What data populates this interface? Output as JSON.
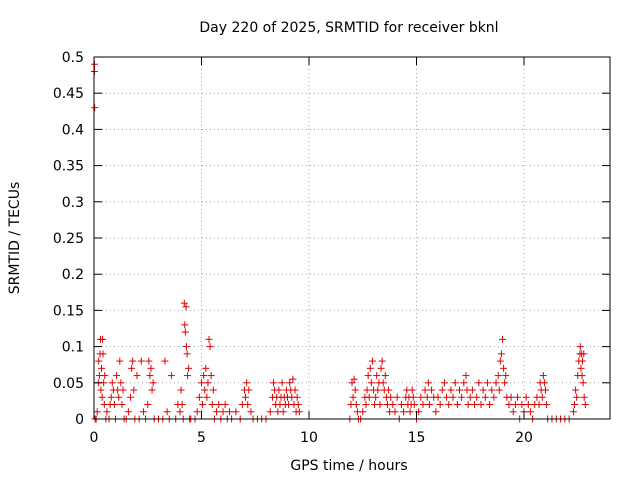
{
  "chart_data": {
    "type": "scatter",
    "title": "Day 220 of 2025, SRMTID for receiver bknl",
    "xlabel": "GPS time / hours",
    "ylabel": "SRMTID / TECUs",
    "xlim": [
      0,
      24
    ],
    "ylim": [
      0,
      0.5
    ],
    "xticks": [
      0,
      5,
      10,
      15,
      20
    ],
    "yticks": [
      0,
      0.05,
      0.1,
      0.15,
      0.2,
      0.25,
      0.3,
      0.35,
      0.4,
      0.45,
      0.5
    ],
    "xtick_labels": [
      "0",
      "5",
      "10",
      "15",
      "20"
    ],
    "ytick_labels": [
      "0",
      "0.05",
      "0.1",
      "0.15",
      "0.2",
      "0.25",
      "0.3",
      "0.35",
      "0.4",
      "0.45",
      "0.5"
    ],
    "grid": true,
    "marker": "+",
    "color": "#e00000",
    "series": [
      {
        "points": [
          [
            0.02,
            0.48
          ],
          [
            0.02,
            0.49
          ],
          [
            0.03,
            0.43
          ],
          [
            0.05,
            0.0
          ],
          [
            0.1,
            0.0
          ],
          [
            0.15,
            0.01
          ],
          [
            0.2,
            0.05
          ],
          [
            0.22,
            0.08
          ],
          [
            0.25,
            0.06
          ],
          [
            0.28,
            0.09
          ],
          [
            0.3,
            0.11
          ],
          [
            0.32,
            0.04
          ],
          [
            0.35,
            0.07
          ],
          [
            0.38,
            0.03
          ],
          [
            0.4,
            0.11
          ],
          [
            0.42,
            0.09
          ],
          [
            0.45,
            0.05
          ],
          [
            0.48,
            0.02
          ],
          [
            0.5,
            0.06
          ],
          [
            0.55,
            0.0
          ],
          [
            0.6,
            0.01
          ],
          [
            0.7,
            0.0
          ],
          [
            0.75,
            0.02
          ],
          [
            0.8,
            0.03
          ],
          [
            0.85,
            0.05
          ],
          [
            0.9,
            0.04
          ],
          [
            0.95,
            0.02
          ],
          [
            1.0,
            0.0
          ],
          [
            1.05,
            0.06
          ],
          [
            1.1,
            0.04
          ],
          [
            1.15,
            0.03
          ],
          [
            1.2,
            0.08
          ],
          [
            1.25,
            0.05
          ],
          [
            1.3,
            0.02
          ],
          [
            1.35,
            0.04
          ],
          [
            1.4,
            0.0
          ],
          [
            1.5,
            0.0
          ],
          [
            1.6,
            0.01
          ],
          [
            1.7,
            0.03
          ],
          [
            1.75,
            0.07
          ],
          [
            1.8,
            0.08
          ],
          [
            1.85,
            0.04
          ],
          [
            1.9,
            0.0
          ],
          [
            2.0,
            0.06
          ],
          [
            2.1,
            0.0
          ],
          [
            2.2,
            0.08
          ],
          [
            2.3,
            0.01
          ],
          [
            2.4,
            0.0
          ],
          [
            2.5,
            0.02
          ],
          [
            2.55,
            0.08
          ],
          [
            2.6,
            0.06
          ],
          [
            2.65,
            0.07
          ],
          [
            2.7,
            0.04
          ],
          [
            2.75,
            0.05
          ],
          [
            2.8,
            0.0
          ],
          [
            3.0,
            0.0
          ],
          [
            3.2,
            0.0
          ],
          [
            3.3,
            0.08
          ],
          [
            3.4,
            0.01
          ],
          [
            3.5,
            0.0
          ],
          [
            3.6,
            0.06
          ],
          [
            3.8,
            0.0
          ],
          [
            3.9,
            0.02
          ],
          [
            4.0,
            0.01
          ],
          [
            4.05,
            0.04
          ],
          [
            4.1,
            0.02
          ],
          [
            4.15,
            0.0
          ],
          [
            4.2,
            0.16
          ],
          [
            4.22,
            0.13
          ],
          [
            4.25,
            0.12
          ],
          [
            4.28,
            0.155
          ],
          [
            4.3,
            0.1
          ],
          [
            4.33,
            0.09
          ],
          [
            4.35,
            0.06
          ],
          [
            4.4,
            0.07
          ],
          [
            4.45,
            0.0
          ],
          [
            4.5,
            0.0
          ],
          [
            4.7,
            0.0
          ],
          [
            4.8,
            0.01
          ],
          [
            4.9,
            0.03
          ],
          [
            5.0,
            0.05
          ],
          [
            5.05,
            0.02
          ],
          [
            5.1,
            0.06
          ],
          [
            5.15,
            0.04
          ],
          [
            5.2,
            0.07
          ],
          [
            5.25,
            0.03
          ],
          [
            5.3,
            0.05
          ],
          [
            5.35,
            0.11
          ],
          [
            5.4,
            0.1
          ],
          [
            5.45,
            0.06
          ],
          [
            5.5,
            0.02
          ],
          [
            5.55,
            0.04
          ],
          [
            5.6,
            0.0
          ],
          [
            5.7,
            0.01
          ],
          [
            5.8,
            0.02
          ],
          [
            5.9,
            0.0
          ],
          [
            6.0,
            0.01
          ],
          [
            6.1,
            0.02
          ],
          [
            6.2,
            0.0
          ],
          [
            6.3,
            0.01
          ],
          [
            6.4,
            0.0
          ],
          [
            6.6,
            0.01
          ],
          [
            6.8,
            0.0
          ],
          [
            6.9,
            0.02
          ],
          [
            7.0,
            0.04
          ],
          [
            7.05,
            0.03
          ],
          [
            7.1,
            0.05
          ],
          [
            7.15,
            0.02
          ],
          [
            7.2,
            0.04
          ],
          [
            7.3,
            0.01
          ],
          [
            7.4,
            0.0
          ],
          [
            7.6,
            0.0
          ],
          [
            7.8,
            0.0
          ],
          [
            8.0,
            0.0
          ],
          [
            8.2,
            0.01
          ],
          [
            8.3,
            0.03
          ],
          [
            8.35,
            0.05
          ],
          [
            8.4,
            0.04
          ],
          [
            8.45,
            0.02
          ],
          [
            8.5,
            0.03
          ],
          [
            8.55,
            0.01
          ],
          [
            8.6,
            0.04
          ],
          [
            8.65,
            0.02
          ],
          [
            8.7,
            0.03
          ],
          [
            8.75,
            0.05
          ],
          [
            8.8,
            0.01
          ],
          [
            8.85,
            0.03
          ],
          [
            8.9,
            0.02
          ],
          [
            8.95,
            0.04
          ],
          [
            9.0,
            0.03
          ],
          [
            9.05,
            0.02
          ],
          [
            9.1,
            0.05
          ],
          [
            9.15,
            0.04
          ],
          [
            9.2,
            0.03
          ],
          [
            9.25,
            0.055
          ],
          [
            9.3,
            0.02
          ],
          [
            9.35,
            0.04
          ],
          [
            9.4,
            0.01
          ],
          [
            9.45,
            0.03
          ],
          [
            9.5,
            0.02
          ],
          [
            9.55,
            0.01
          ],
          [
            11.9,
            0.0
          ],
          [
            11.95,
            0.02
          ],
          [
            12.0,
            0.05
          ],
          [
            12.05,
            0.03
          ],
          [
            12.1,
            0.055
          ],
          [
            12.15,
            0.04
          ],
          [
            12.2,
            0.02
          ],
          [
            12.25,
            0.01
          ],
          [
            12.3,
            0.0
          ],
          [
            12.4,
            0.0
          ],
          [
            12.5,
            0.01
          ],
          [
            12.6,
            0.03
          ],
          [
            12.65,
            0.02
          ],
          [
            12.7,
            0.04
          ],
          [
            12.75,
            0.06
          ],
          [
            12.8,
            0.03
          ],
          [
            12.85,
            0.07
          ],
          [
            12.9,
            0.05
          ],
          [
            12.95,
            0.08
          ],
          [
            13.0,
            0.04
          ],
          [
            13.05,
            0.02
          ],
          [
            13.1,
            0.03
          ],
          [
            13.15,
            0.06
          ],
          [
            13.2,
            0.04
          ],
          [
            13.25,
            0.05
          ],
          [
            13.3,
            0.02
          ],
          [
            13.35,
            0.07
          ],
          [
            13.4,
            0.08
          ],
          [
            13.45,
            0.05
          ],
          [
            13.5,
            0.04
          ],
          [
            13.55,
            0.06
          ],
          [
            13.6,
            0.03
          ],
          [
            13.65,
            0.02
          ],
          [
            13.7,
            0.04
          ],
          [
            13.75,
            0.01
          ],
          [
            13.8,
            0.03
          ],
          [
            13.9,
            0.02
          ],
          [
            14.0,
            0.01
          ],
          [
            14.1,
            0.03
          ],
          [
            14.2,
            0.0
          ],
          [
            14.3,
            0.02
          ],
          [
            14.4,
            0.01
          ],
          [
            14.5,
            0.03
          ],
          [
            14.55,
            0.04
          ],
          [
            14.6,
            0.02
          ],
          [
            14.65,
            0.03
          ],
          [
            14.7,
            0.01
          ],
          [
            14.75,
            0.02
          ],
          [
            14.8,
            0.04
          ],
          [
            14.85,
            0.03
          ],
          [
            14.9,
            0.02
          ],
          [
            15.0,
            0.0
          ],
          [
            15.1,
            0.01
          ],
          [
            15.2,
            0.03
          ],
          [
            15.3,
            0.02
          ],
          [
            15.4,
            0.04
          ],
          [
            15.5,
            0.03
          ],
          [
            15.55,
            0.05
          ],
          [
            15.6,
            0.02
          ],
          [
            15.7,
            0.04
          ],
          [
            15.8,
            0.03
          ],
          [
            15.9,
            0.01
          ],
          [
            16.0,
            0.03
          ],
          [
            16.1,
            0.02
          ],
          [
            16.2,
            0.04
          ],
          [
            16.3,
            0.05
          ],
          [
            16.4,
            0.03
          ],
          [
            16.5,
            0.02
          ],
          [
            16.6,
            0.04
          ],
          [
            16.7,
            0.03
          ],
          [
            16.8,
            0.05
          ],
          [
            16.9,
            0.02
          ],
          [
            17.0,
            0.04
          ],
          [
            17.1,
            0.03
          ],
          [
            17.2,
            0.05
          ],
          [
            17.3,
            0.06
          ],
          [
            17.35,
            0.04
          ],
          [
            17.4,
            0.02
          ],
          [
            17.5,
            0.03
          ],
          [
            17.6,
            0.04
          ],
          [
            17.7,
            0.02
          ],
          [
            17.8,
            0.03
          ],
          [
            17.9,
            0.05
          ],
          [
            18.0,
            0.02
          ],
          [
            18.1,
            0.04
          ],
          [
            18.2,
            0.03
          ],
          [
            18.3,
            0.05
          ],
          [
            18.4,
            0.02
          ],
          [
            18.5,
            0.04
          ],
          [
            18.6,
            0.03
          ],
          [
            18.7,
            0.05
          ],
          [
            18.8,
            0.06
          ],
          [
            18.85,
            0.04
          ],
          [
            18.9,
            0.08
          ],
          [
            18.95,
            0.09
          ],
          [
            19.0,
            0.11
          ],
          [
            19.05,
            0.07
          ],
          [
            19.1,
            0.05
          ],
          [
            19.15,
            0.06
          ],
          [
            19.2,
            0.03
          ],
          [
            19.3,
            0.02
          ],
          [
            19.4,
            0.03
          ],
          [
            19.5,
            0.01
          ],
          [
            19.6,
            0.02
          ],
          [
            19.7,
            0.03
          ],
          [
            19.8,
            0.0
          ],
          [
            19.9,
            0.02
          ],
          [
            20.0,
            0.01
          ],
          [
            20.1,
            0.03
          ],
          [
            20.2,
            0.02
          ],
          [
            20.3,
            0.01
          ],
          [
            20.4,
            0.0
          ],
          [
            20.5,
            0.02
          ],
          [
            20.6,
            0.03
          ],
          [
            20.7,
            0.02
          ],
          [
            20.75,
            0.05
          ],
          [
            20.8,
            0.04
          ],
          [
            20.85,
            0.03
          ],
          [
            20.9,
            0.06
          ],
          [
            20.95,
            0.05
          ],
          [
            21.0,
            0.04
          ],
          [
            21.05,
            0.02
          ],
          [
            21.1,
            0.0
          ],
          [
            21.3,
            0.0
          ],
          [
            21.5,
            0.0
          ],
          [
            21.7,
            0.0
          ],
          [
            21.9,
            0.0
          ],
          [
            22.1,
            0.0
          ],
          [
            22.3,
            0.01
          ],
          [
            22.35,
            0.02
          ],
          [
            22.4,
            0.04
          ],
          [
            22.45,
            0.03
          ],
          [
            22.5,
            0.06
          ],
          [
            22.55,
            0.08
          ],
          [
            22.6,
            0.09
          ],
          [
            22.62,
            0.1
          ],
          [
            22.65,
            0.07
          ],
          [
            22.68,
            0.09
          ],
          [
            22.7,
            0.06
          ],
          [
            22.72,
            0.08
          ],
          [
            22.75,
            0.05
          ],
          [
            22.78,
            0.09
          ],
          [
            22.8,
            0.03
          ],
          [
            22.85,
            0.02
          ]
        ]
      }
    ]
  }
}
